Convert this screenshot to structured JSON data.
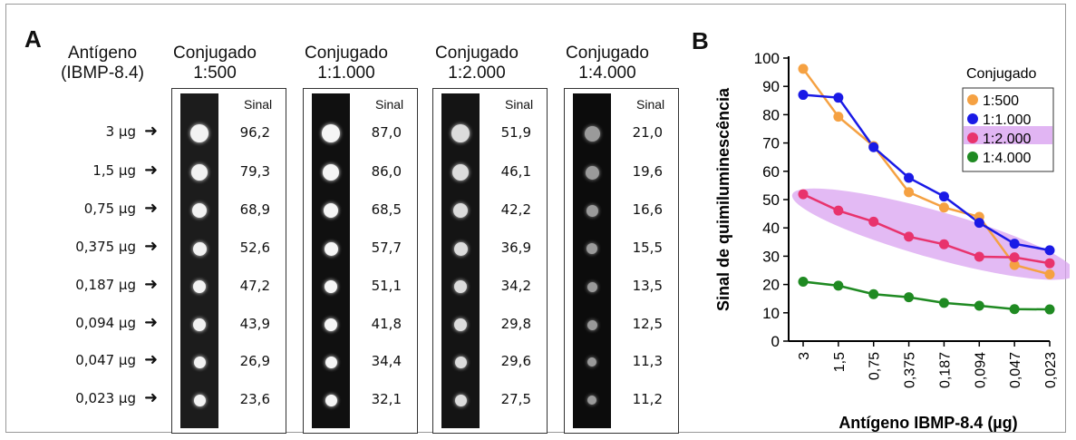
{
  "panels": {
    "a": "A",
    "b": "B"
  },
  "antigen_header": [
    "Antígeno",
    "(IBMP-8.4)"
  ],
  "sinal_label": "Sinal",
  "row_labels": [
    "3 µg",
    "1,5 µg",
    "0,75 µg",
    "0,375 µg",
    "0,187 µg",
    "0,094 µg",
    "0,047 µg",
    "0,023 µg"
  ],
  "strips": [
    {
      "title1": "Conjugado",
      "title2": "1:500",
      "values": [
        "96,2",
        "79,3",
        "68,9",
        "52,6",
        "47,2",
        "43,9",
        "26,9",
        "23,6"
      ]
    },
    {
      "title1": "Conjugado",
      "title2": "1:1.000",
      "values": [
        "87,0",
        "86,0",
        "68,5",
        "57,7",
        "51,1",
        "41,8",
        "34,4",
        "32,1"
      ]
    },
    {
      "title1": "Conjugado",
      "title2": "1:2.000",
      "values": [
        "51,9",
        "46,1",
        "42,2",
        "36,9",
        "34,2",
        "29,8",
        "29,6",
        "27,5"
      ]
    },
    {
      "title1": "Conjugado",
      "title2": "1:4.000",
      "values": [
        "21,0",
        "19,6",
        "16,6",
        "15,5",
        "13,5",
        "12,5",
        "11,3",
        "11,2"
      ]
    }
  ],
  "chart_data": {
    "type": "line",
    "xlabel": "Antígeno IBMP-8.4 (µg)",
    "ylabel": "Sinal de quimiluminescência",
    "categories": [
      "3",
      "1,5",
      "0,75",
      "0,375",
      "0,187",
      "0,094",
      "0,047",
      "0,023"
    ],
    "ylim": [
      0,
      100
    ],
    "yticks": [
      0,
      10,
      20,
      30,
      40,
      50,
      60,
      70,
      80,
      90,
      100
    ],
    "legend_title": "Conjugado",
    "legend_position": "top-right",
    "series": [
      {
        "name": "1:500",
        "color": "#f5a142",
        "values": [
          96.2,
          79.3,
          68.9,
          52.6,
          47.2,
          43.9,
          26.9,
          23.6
        ]
      },
      {
        "name": "1:1.000",
        "color": "#1a1ae6",
        "values": [
          87.0,
          86.0,
          68.5,
          57.7,
          51.1,
          41.8,
          34.4,
          32.1
        ]
      },
      {
        "name": "1:2.000",
        "color": "#e8336d",
        "values": [
          51.9,
          46.1,
          42.2,
          36.9,
          34.2,
          29.8,
          29.6,
          27.5
        ]
      },
      {
        "name": "1:4.000",
        "color": "#1f8a22",
        "values": [
          21.0,
          19.6,
          16.6,
          15.5,
          13.5,
          12.5,
          11.3,
          11.2
        ]
      }
    ],
    "highlight_color": "#d9a3f0"
  }
}
